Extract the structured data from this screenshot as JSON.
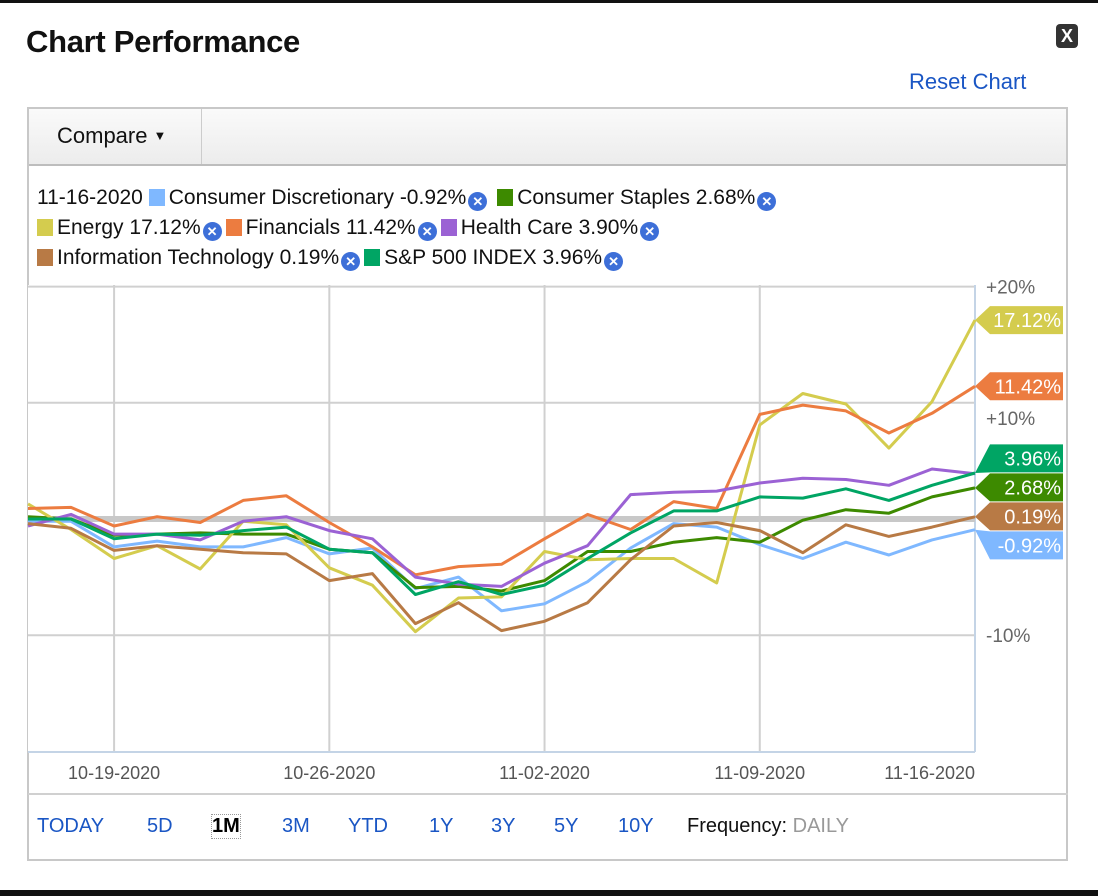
{
  "dialog": {
    "title": "Chart Performance",
    "close_label": "X",
    "reset_label": "Reset Chart"
  },
  "toolbar": {
    "compare_label": "Compare",
    "compare_caret": "▼"
  },
  "legend": {
    "date": "11-16-2020",
    "remove_icon": "⊗"
  },
  "ranges": [
    {
      "label": "TODAY",
      "selected": false
    },
    {
      "label": "5D",
      "selected": false
    },
    {
      "label": "1M",
      "selected": true
    },
    {
      "label": "3M",
      "selected": false
    },
    {
      "label": "YTD",
      "selected": false
    },
    {
      "label": "1Y",
      "selected": false
    },
    {
      "label": "3Y",
      "selected": false
    },
    {
      "label": "5Y",
      "selected": false
    },
    {
      "label": "10Y",
      "selected": false
    }
  ],
  "frequency": {
    "label": "Frequency:",
    "value": "DAILY"
  },
  "chart_data": {
    "type": "line",
    "ylim": [
      -20,
      20
    ],
    "y_ticks": [
      {
        "v": 20,
        "label": "+20%"
      },
      {
        "v": 10,
        "label": "+10%"
      },
      {
        "v": -10,
        "label": "-10%"
      }
    ],
    "x": [
      "10-15-2020",
      "10-16-2020",
      "10-19-2020",
      "10-20-2020",
      "10-21-2020",
      "10-22-2020",
      "10-23-2020",
      "10-26-2020",
      "10-27-2020",
      "10-28-2020",
      "10-29-2020",
      "10-30-2020",
      "11-02-2020",
      "11-03-2020",
      "11-04-2020",
      "11-05-2020",
      "11-06-2020",
      "11-09-2020",
      "11-10-2020",
      "11-11-2020",
      "11-12-2020",
      "11-13-2020",
      "11-16-2020"
    ],
    "x_tick_labels": [
      "10-19-2020",
      "10-26-2020",
      "11-02-2020",
      "11-09-2020",
      "11-16-2020"
    ],
    "grid": true,
    "legend_position": "top",
    "series": [
      {
        "name": "Consumer Discretionary",
        "last_label": "-0.92%",
        "color": "#7fb8ff",
        "values": [
          -0.2,
          -0.2,
          -2.4,
          -1.9,
          -2.4,
          -2.4,
          -1.6,
          -3.0,
          -2.5,
          -6.0,
          -5.0,
          -7.9,
          -7.3,
          -5.4,
          -2.5,
          -0.4,
          -0.7,
          -2.2,
          -3.4,
          -2.0,
          -3.1,
          -1.8,
          -0.92
        ]
      },
      {
        "name": "Consumer Staples",
        "last_label": "2.68%",
        "color": "#3d8a00",
        "values": [
          0.2,
          0.0,
          -1.4,
          -1.3,
          -1.2,
          -1.3,
          -1.3,
          -2.6,
          -2.9,
          -5.9,
          -5.8,
          -6.2,
          -5.3,
          -2.8,
          -2.8,
          -2.0,
          -1.6,
          -2.0,
          -0.1,
          0.8,
          0.5,
          1.9,
          2.68
        ]
      },
      {
        "name": "Energy",
        "last_label": "17.12%",
        "color": "#d4cc4e",
        "values": [
          1.3,
          -0.9,
          -3.4,
          -2.3,
          -4.3,
          -0.2,
          -0.5,
          -4.2,
          -5.7,
          -9.7,
          -6.8,
          -6.7,
          -2.8,
          -3.5,
          -3.4,
          -3.4,
          -5.5,
          8.1,
          10.8,
          9.9,
          6.1,
          10.1,
          17.12
        ]
      },
      {
        "name": "Financials",
        "last_label": "11.42%",
        "color": "#ec7c40",
        "values": [
          0.9,
          1.0,
          -0.6,
          0.2,
          -0.3,
          1.6,
          2.0,
          -0.3,
          -2.4,
          -4.8,
          -4.1,
          -3.9,
          -1.7,
          0.4,
          -0.9,
          1.5,
          0.9,
          9.0,
          9.8,
          9.3,
          7.4,
          9.1,
          11.42
        ]
      },
      {
        "name": "Health Care",
        "last_label": "3.90%",
        "color": "#9b62d4",
        "values": [
          -0.6,
          0.4,
          -1.3,
          -1.3,
          -1.8,
          -0.2,
          0.2,
          -1.0,
          -1.7,
          -5.0,
          -5.6,
          -5.8,
          -3.8,
          -2.3,
          2.1,
          2.3,
          2.4,
          3.1,
          3.5,
          3.4,
          2.9,
          4.3,
          3.9
        ]
      },
      {
        "name": "Information Technology",
        "last_label": "0.19%",
        "color": "#b87a45",
        "values": [
          -0.4,
          -0.8,
          -2.7,
          -2.3,
          -2.6,
          -2.9,
          -3.0,
          -5.3,
          -4.7,
          -9.0,
          -7.2,
          -9.6,
          -8.8,
          -7.2,
          -3.5,
          -0.6,
          -0.3,
          -1.0,
          -2.9,
          -0.5,
          -1.5,
          -0.7,
          0.19
        ]
      },
      {
        "name": "S&P 500 INDEX",
        "last_label": "3.96%",
        "color": "#00a564",
        "values": [
          0.0,
          0.0,
          -1.7,
          -1.3,
          -1.4,
          -1.0,
          -0.7,
          -2.6,
          -2.9,
          -6.5,
          -5.4,
          -6.5,
          -5.7,
          -3.4,
          -1.2,
          0.7,
          0.7,
          1.9,
          1.8,
          2.6,
          1.6,
          2.9,
          3.96
        ]
      }
    ]
  }
}
